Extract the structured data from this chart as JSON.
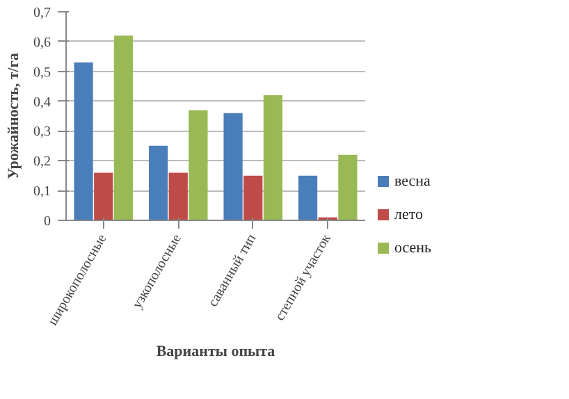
{
  "chart_data": {
    "type": "bar",
    "xlabel": "Варианты опыта",
    "ylabel": "Урожайность, т/га",
    "categories": [
      "широкополосные",
      "узкополосные",
      "саванный тип",
      "степной участок"
    ],
    "series": [
      {
        "name": "весна",
        "color": "#4a7ebb",
        "values": [
          0.53,
          0.25,
          0.36,
          0.15
        ]
      },
      {
        "name": "лето",
        "color": "#be4b48",
        "values": [
          0.16,
          0.16,
          0.15,
          0.01
        ]
      },
      {
        "name": "осень",
        "color": "#98b954",
        "values": [
          0.62,
          0.37,
          0.42,
          0.22
        ]
      }
    ],
    "ylim": [
      0,
      0.7
    ],
    "yticks": [
      0,
      {
        "value": 0.1,
        "label": "0,1"
      },
      {
        "value": 0.2,
        "label": "0,2"
      },
      {
        "value": 0.3,
        "label": "0,3"
      },
      {
        "value": 0.4,
        "label": "0,4"
      },
      {
        "value": 0.5,
        "label": "0,5"
      },
      {
        "value": 0.6,
        "label": "0,6"
      },
      {
        "value": 0.7,
        "label": "0,7"
      }
    ],
    "grid": "y",
    "legend": "right"
  }
}
